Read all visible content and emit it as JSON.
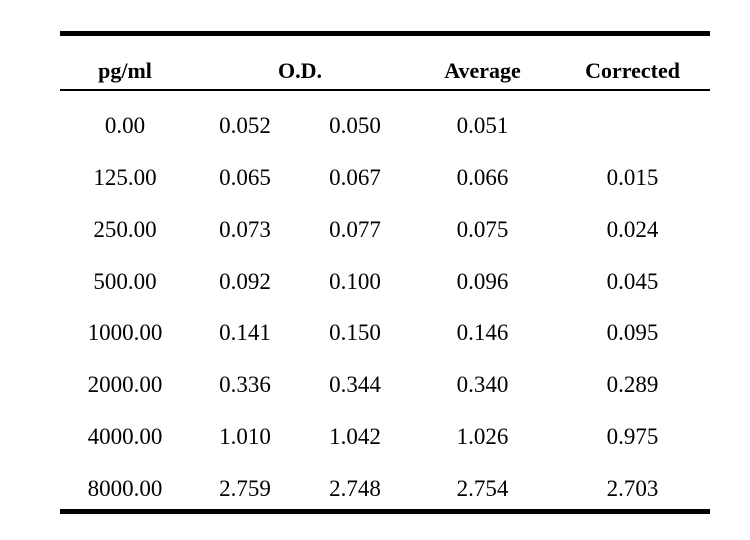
{
  "header": {
    "concentration": "pg/ml",
    "od": "O.D.",
    "average": "Average",
    "corrected": "Corrected"
  },
  "rows": [
    {
      "conc": "0.00",
      "od1": "0.052",
      "od2": "0.050",
      "avg": "0.051",
      "corr": ""
    },
    {
      "conc": "125.00",
      "od1": "0.065",
      "od2": "0.067",
      "avg": "0.066",
      "corr": "0.015"
    },
    {
      "conc": "250.00",
      "od1": "0.073",
      "od2": "0.077",
      "avg": "0.075",
      "corr": "0.024"
    },
    {
      "conc": "500.00",
      "od1": "0.092",
      "od2": "0.100",
      "avg": "0.096",
      "corr": "0.045"
    },
    {
      "conc": "1000.00",
      "od1": "0.141",
      "od2": "0.150",
      "avg": "0.146",
      "corr": "0.095"
    },
    {
      "conc": "2000.00",
      "od1": "0.336",
      "od2": "0.344",
      "avg": "0.340",
      "corr": "0.289"
    },
    {
      "conc": "4000.00",
      "od1": "1.010",
      "od2": "1.042",
      "avg": "1.026",
      "corr": "0.975"
    },
    {
      "conc": "8000.00",
      "od1": "2.759",
      "od2": "2.748",
      "avg": "2.754",
      "corr": "2.703"
    }
  ]
}
